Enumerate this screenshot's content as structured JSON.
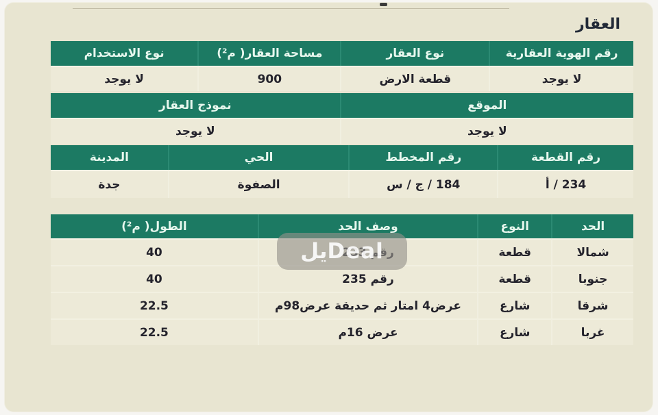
{
  "page": {
    "title": "العقار",
    "watermark": "يلDeal"
  },
  "colors": {
    "header_green": "#1c7a63",
    "page_beige": "#e8e5d1",
    "row_beige": "#edead8",
    "header_text": "#e7f7ee",
    "body_text": "#24232c"
  },
  "property_table": {
    "headers": [
      "رقم الهوية العقارية",
      "نوع العقار",
      "مساحة العقار( م²)",
      "نوع الاستخدام"
    ],
    "values": [
      "لا يوجد",
      "قطعة الارض",
      "900",
      "لا يوجد"
    ]
  },
  "location_table": {
    "headers": [
      "الموقع",
      "نموذج العقار"
    ],
    "values": [
      "لا يوجد",
      "لا يوجد"
    ]
  },
  "plot_table": {
    "headers": [
      "رقم القطعة",
      "رقم المخطط",
      "الحي",
      "المدينة"
    ],
    "values": [
      "234 / أ",
      "184 / ج / س",
      "الصفوة",
      "جدة"
    ]
  },
  "borders_table": {
    "headers": [
      "الحد",
      "النوع",
      "وصف الحد",
      "الطول( م²)"
    ],
    "rows": [
      [
        "شمالا",
        "قطعة",
        "رقم 233",
        "40"
      ],
      [
        "جنوبا",
        "قطعة",
        "رقم 235",
        "40"
      ],
      [
        "شرقا",
        "شارع",
        "عرض4 امتار ثم حديقة عرض98م",
        "22.5"
      ],
      [
        "غربا",
        "شارع",
        "عرض 16م",
        "22.5"
      ]
    ]
  }
}
